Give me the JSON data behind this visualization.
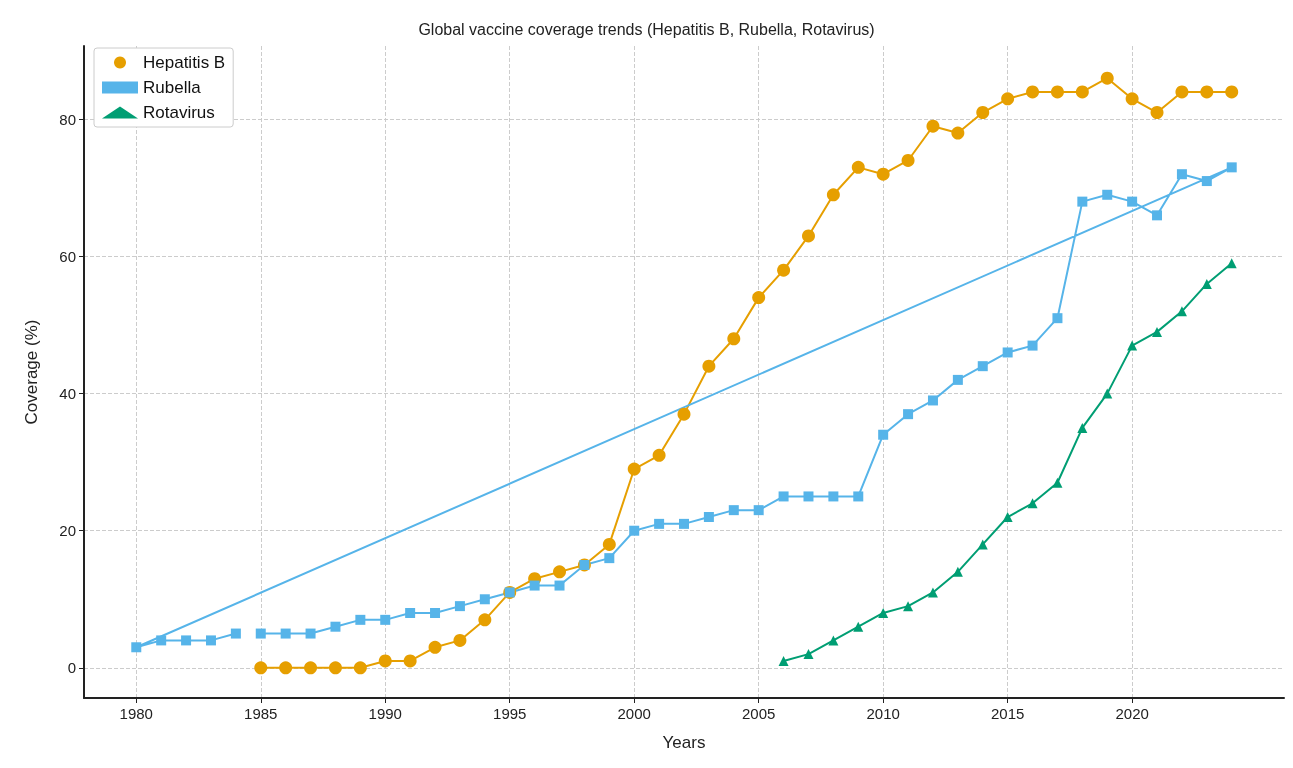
{
  "chart_data": {
    "type": "line",
    "title": "Global vaccine coverage trends (Hepatitis B, Rubella, Rotavirus)",
    "xlabel": "Years",
    "ylabel": "Coverage (%)",
    "xlim": [
      1977.9,
      2026.1
    ],
    "xticks": [
      1980,
      1985,
      1990,
      1995,
      2000,
      2005,
      2010,
      2015,
      2020
    ],
    "ylim": [
      -4.4,
      90.7
    ],
    "yticks": [
      0,
      20,
      40,
      60,
      80
    ],
    "grid": true,
    "legend": "top left",
    "line_style": "solid",
    "series": [
      {
        "name": "Hepatitis B",
        "color": "#e69f00",
        "marker": "circle",
        "x": [
          1985,
          1986,
          1987,
          1988,
          1989,
          1990,
          1991,
          1992,
          1993,
          1994,
          1995,
          1996,
          1997,
          1998,
          1999,
          2000,
          2001,
          2002,
          2003,
          2004,
          2005,
          2006,
          2007,
          2008,
          2009,
          2010,
          2011,
          2012,
          2013,
          2014,
          2015,
          2016,
          2017,
          2018,
          2019,
          2020,
          2021,
          2022,
          2023,
          2024
        ],
        "values": [
          0,
          0,
          0,
          0,
          0,
          1,
          1,
          3,
          4,
          7,
          11,
          13,
          14,
          15,
          18,
          29,
          31,
          37,
          44,
          48,
          54,
          58,
          63,
          69,
          73,
          72,
          74,
          79,
          78,
          81,
          83,
          84,
          84,
          84,
          86,
          83,
          81,
          84,
          84,
          84
        ]
      },
      {
        "name": "Rubella",
        "color": "#56b4e9",
        "marker": "square",
        "x": [
          1985,
          1986,
          1987,
          1988,
          1989,
          1990,
          1991,
          1992,
          1993,
          1994,
          1995,
          1996,
          1997,
          1998,
          1999,
          2000,
          2001,
          2002,
          2003,
          2004,
          2005,
          2006,
          2007,
          2008,
          2009,
          2010,
          2011,
          2012,
          2013,
          2014,
          2015,
          2016,
          2017,
          2018,
          2019,
          2020,
          2021,
          2022,
          2023,
          2024,
          1980,
          1981,
          1982,
          1983,
          1984
        ],
        "values": [
          5,
          5,
          5,
          6,
          7,
          7,
          8,
          8,
          9,
          10,
          11,
          12,
          12,
          15,
          16,
          20,
          21,
          21,
          22,
          23,
          23,
          25,
          25,
          25,
          25,
          34,
          37,
          39,
          42,
          44,
          46,
          47,
          51,
          68,
          69,
          68,
          66,
          72,
          71,
          73,
          3,
          4,
          4,
          4,
          5
        ]
      },
      {
        "name": "Rotavirus",
        "color": "#009e73",
        "marker": "triangle",
        "x": [
          2006,
          2007,
          2008,
          2009,
          2010,
          2011,
          2012,
          2013,
          2014,
          2015,
          2016,
          2017,
          2018,
          2019,
          2020,
          2021,
          2022,
          2023,
          2024
        ],
        "values": [
          1,
          2,
          4,
          6,
          8,
          9,
          11,
          14,
          18,
          22,
          24,
          27,
          35,
          40,
          47,
          49,
          52,
          56,
          59
        ]
      }
    ]
  }
}
